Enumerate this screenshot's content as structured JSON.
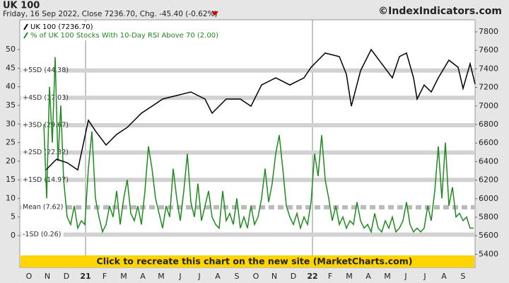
{
  "chart_data": {
    "type": "line",
    "title": "UK 100",
    "subtitle": "Friday, 16 Sep 2022, Close 7236.70, Chg. -45.40 (-0.62%)",
    "source": "©IndexIndicators.com",
    "banner": "Click to recreate this chart on the new site (MarketCharts.com)",
    "legend": "upper left",
    "xlim": [
      -13,
      631
    ],
    "xticks": [
      {
        "value": 0,
        "label": "O"
      },
      {
        "value": 26,
        "label": "N"
      },
      {
        "value": 53,
        "label": "D"
      },
      {
        "value": 80,
        "label": "21"
      },
      {
        "value": 107,
        "label": "F"
      },
      {
        "value": 134,
        "label": "M"
      },
      {
        "value": 161,
        "label": "A"
      },
      {
        "value": 187,
        "label": "M"
      },
      {
        "value": 214,
        "label": "J"
      },
      {
        "value": 241,
        "label": "J"
      },
      {
        "value": 267,
        "label": "A"
      },
      {
        "value": 294,
        "label": "S"
      },
      {
        "value": 321,
        "label": "O"
      },
      {
        "value": 347,
        "label": "N"
      },
      {
        "value": 374,
        "label": "D"
      },
      {
        "value": 401,
        "label": "22"
      },
      {
        "value": 426,
        "label": "F"
      },
      {
        "value": 453,
        "label": "M"
      },
      {
        "value": 480,
        "label": "A"
      },
      {
        "value": 507,
        "label": "M"
      },
      {
        "value": 533,
        "label": "J"
      },
      {
        "value": 560,
        "label": "J"
      },
      {
        "value": 587,
        "label": "A"
      },
      {
        "value": 614,
        "label": "S"
      }
    ],
    "year_ticks": [
      3,
      15
    ],
    "ylim": [
      -8.55,
      58
    ],
    "yticks": [
      0,
      5,
      10,
      15,
      20,
      25,
      30,
      35,
      40,
      45,
      50
    ],
    "y2lim": [
      5258,
      7930
    ],
    "y2ticks": [
      5400,
      5600,
      5800,
      6000,
      6200,
      6400,
      6600,
      6800,
      7000,
      7200,
      7400,
      7600,
      7800
    ],
    "bands": [
      {
        "value": 44.38,
        "label": "+5SD (44.38)"
      },
      {
        "value": 37.03,
        "label": "+4SD (37.03)"
      },
      {
        "value": 29.67,
        "label": "+3SD (29.67)"
      },
      {
        "value": 22.32,
        "label": "+2SD (22.32)"
      },
      {
        "value": 14.97,
        "label": "+1SD (14.97)"
      },
      {
        "value": 7.62,
        "label": "Mean (7.62)",
        "dashed": true
      },
      {
        "value": 0.26,
        "label": "-1SD (0.26)"
      }
    ],
    "series": [
      {
        "name": "UK 100 (7236.70)",
        "color": "#000000",
        "axis": "y2",
        "x": [
          24,
          39,
          54,
          69,
          84,
          94,
          109,
          124,
          139,
          159,
          174,
          189,
          209,
          229,
          249,
          259,
          279,
          299,
          314,
          329,
          349,
          369,
          389,
          399,
          419,
          439,
          449,
          456,
          469,
          484,
          499,
          514,
          524,
          534,
          544,
          549,
          559,
          569,
          579,
          594,
          607,
          614,
          624,
          631
        ],
        "values": [
          6311,
          6426,
          6388,
          6311,
          6846,
          6731,
          6579,
          6693,
          6769,
          6922,
          6998,
          7075,
          7113,
          7151,
          7075,
          6922,
          7075,
          7075,
          6998,
          7227,
          7304,
          7227,
          7304,
          7418,
          7571,
          7533,
          7342,
          6998,
          7380,
          7609,
          7456,
          7304,
          7533,
          7571,
          7304,
          7075,
          7227,
          7151,
          7304,
          7495,
          7418,
          7189,
          7456,
          7236.7
        ]
      },
      {
        "name": "% of UK 100 Stocks With 10-Day RSI Above 70 (2.00)",
        "color": "#1f8a1f",
        "x": [
          21,
          25,
          29,
          33,
          37,
          41,
          45,
          49,
          54,
          59,
          64,
          69,
          74,
          79,
          84,
          89,
          94,
          99,
          104,
          109,
          114,
          119,
          124,
          129,
          134,
          139,
          144,
          149,
          154,
          159,
          164,
          169,
          174,
          179,
          184,
          189,
          194,
          199,
          204,
          209,
          214,
          219,
          224,
          229,
          234,
          239,
          244,
          249,
          254,
          259,
          264,
          269,
          274,
          279,
          284,
          289,
          294,
          299,
          304,
          309,
          314,
          319,
          324,
          329,
          334,
          339,
          344,
          349,
          354,
          359,
          364,
          369,
          374,
          379,
          384,
          389,
          394,
          399,
          404,
          409,
          414,
          419,
          424,
          429,
          434,
          439,
          444,
          449,
          454,
          459,
          464,
          469,
          474,
          479,
          484,
          489,
          494,
          499,
          504,
          509,
          514,
          519,
          524,
          529,
          534,
          539,
          544,
          549,
          554,
          559,
          564,
          569,
          574,
          579,
          584,
          589,
          594,
          599,
          604,
          609,
          614,
          619,
          624,
          629
        ],
        "values": [
          30,
          10,
          40,
          25,
          48,
          20,
          35,
          15,
          5,
          3,
          8,
          2,
          4,
          3,
          18,
          28,
          10,
          5,
          1,
          3,
          8,
          5,
          12,
          3,
          10,
          15,
          6,
          4,
          8,
          3,
          12,
          24,
          18,
          10,
          6,
          2,
          8,
          5,
          18,
          10,
          4,
          12,
          22,
          9,
          5,
          14,
          4,
          8,
          12,
          5,
          3,
          2,
          12,
          4,
          6,
          3,
          10,
          2,
          5,
          2,
          8,
          3,
          5,
          10,
          18,
          9,
          14,
          22,
          27,
          18,
          8,
          5,
          3,
          6,
          2,
          5,
          3,
          9,
          22,
          16,
          27,
          15,
          10,
          4,
          8,
          3,
          5,
          2,
          4,
          3,
          9,
          4,
          2,
          3,
          1,
          6,
          2,
          1,
          4,
          2,
          5,
          1,
          2,
          4,
          9,
          3,
          1,
          2,
          1,
          2,
          8,
          4,
          12,
          24,
          10,
          25,
          8,
          13,
          5,
          6,
          4,
          5,
          2,
          2
        ]
      }
    ]
  }
}
